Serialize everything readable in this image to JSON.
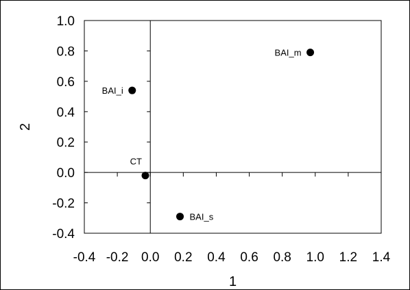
{
  "chart_data": {
    "type": "scatter",
    "title": "",
    "xlabel": "1",
    "ylabel": "2",
    "xlim": [
      -0.4,
      1.4
    ],
    "ylim": [
      -0.4,
      1.0
    ],
    "xticks": [
      -0.4,
      -0.2,
      0.0,
      0.2,
      0.4,
      0.6,
      0.8,
      1.0,
      1.2,
      1.4
    ],
    "yticks": [
      -0.4,
      -0.2,
      0.0,
      0.2,
      0.4,
      0.6,
      0.8,
      1.0
    ],
    "xtick_labels": [
      "-0.4",
      "-0.2",
      "0.0",
      "0.2",
      "0.4",
      "0.6",
      "0.8",
      "1.0",
      "1.2",
      "1.4"
    ],
    "ytick_labels": [
      "-0.4",
      "-0.2",
      "0.0",
      "0.2",
      "0.4",
      "0.6",
      "0.8",
      "1.0"
    ],
    "grid": false,
    "reference_lines": {
      "x": 0,
      "y": 0
    },
    "marker_color": "#000000",
    "points": [
      {
        "label": "BAI_m",
        "x": 0.97,
        "y": 0.79,
        "label_side": "left"
      },
      {
        "label": "BAI_i",
        "x": -0.11,
        "y": 0.54,
        "label_side": "left"
      },
      {
        "label": "CT",
        "x": -0.03,
        "y": -0.02,
        "label_side": "above-left"
      },
      {
        "label": "BAI_s",
        "x": 0.18,
        "y": -0.29,
        "label_side": "right"
      }
    ]
  }
}
